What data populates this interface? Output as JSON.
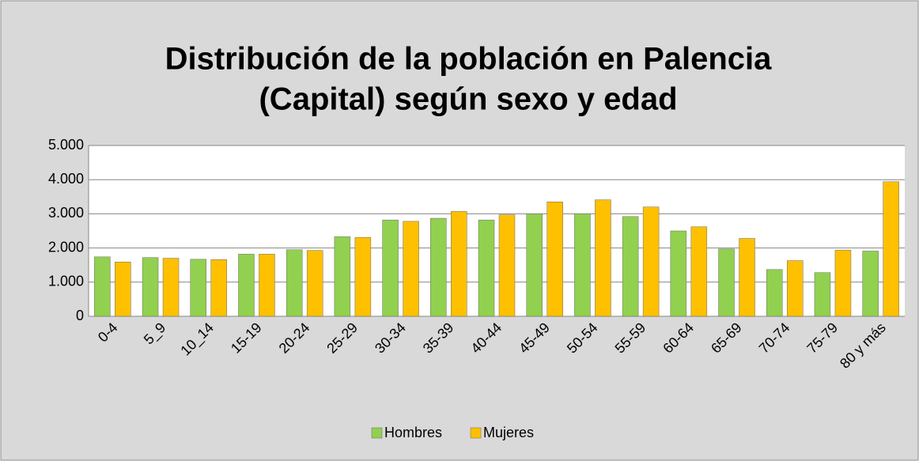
{
  "chart_data": {
    "type": "bar",
    "title": [
      "Distribución de la población en Palencia",
      "(Capital) según sexo y edad"
    ],
    "categories": [
      "0-4",
      "5_9",
      "10_14",
      "15-19",
      "20-24",
      "25-29",
      "30-34",
      "35-39",
      "40-44",
      "45-49",
      "50-54",
      "55-59",
      "60-64",
      "65-69",
      "70-74",
      "75-79",
      "80 y más"
    ],
    "series": [
      {
        "name": "Hombres",
        "color": "#92d050",
        "values": [
          1740,
          1720,
          1670,
          1820,
          1950,
          2330,
          2820,
          2870,
          2820,
          3000,
          3000,
          2920,
          2500,
          1970,
          1370,
          1280,
          1910
        ]
      },
      {
        "name": "Mujeres",
        "color": "#ffc000",
        "values": [
          1590,
          1700,
          1660,
          1820,
          1930,
          2310,
          2780,
          3070,
          2970,
          3350,
          3410,
          3200,
          2620,
          2280,
          1630,
          1940,
          3940
        ]
      }
    ],
    "ylim": [
      0,
      5000
    ],
    "yticks": [
      0,
      {
        "value": 1000,
        "label": "1.000"
      },
      {
        "value": 2000,
        "label": "2.000"
      },
      {
        "value": 3000,
        "label": "3.000"
      },
      {
        "value": 4000,
        "label": "4.000"
      },
      {
        "value": 5000,
        "label": "5.000"
      }
    ],
    "grid": true,
    "legend": "bottom"
  }
}
